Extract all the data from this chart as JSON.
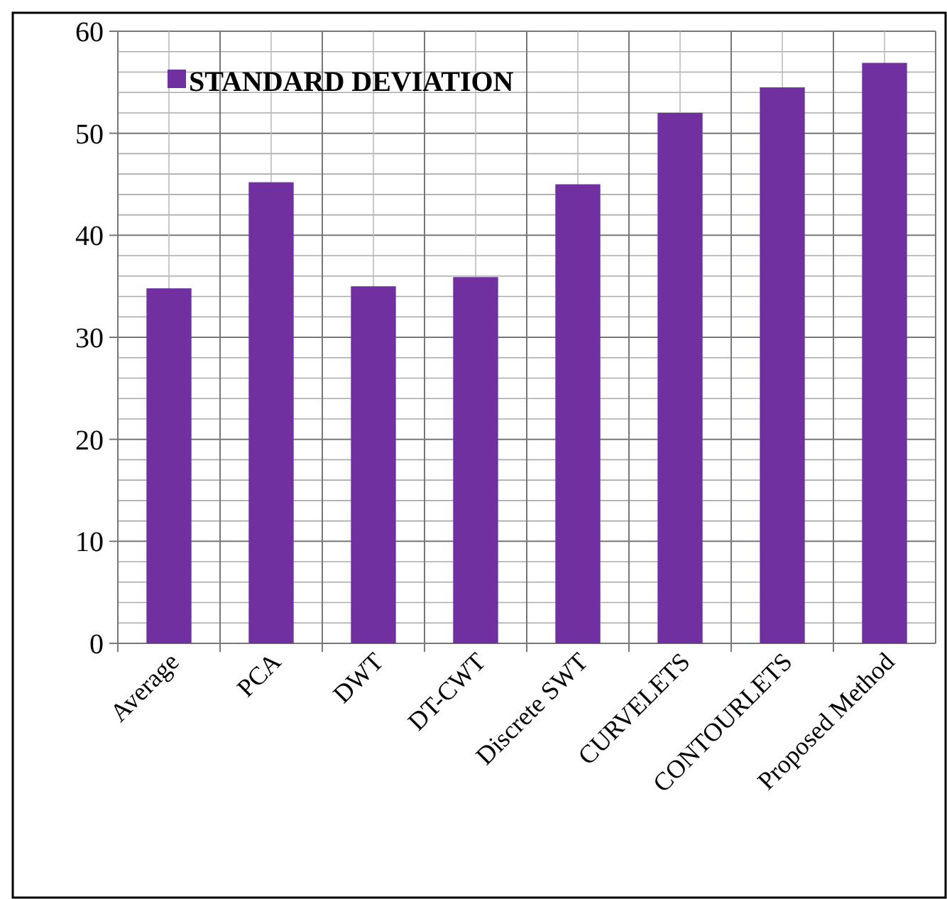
{
  "chart_data": {
    "type": "bar",
    "categories": [
      "Average",
      "PCA",
      "DWT",
      "DT-CWT",
      "Discrete SWT",
      "CURVELETS",
      "CONTOURLETS",
      "Proposed Method"
    ],
    "series": [
      {
        "name": "STANDARD DEVIATION",
        "color": "#7030a0",
        "values": [
          34.8,
          45.2,
          35,
          35.9,
          45,
          52,
          54.5,
          56.9
        ]
      }
    ],
    "ylim": [
      0,
      60
    ],
    "yticks": [
      0,
      {
        "value": 2,
        "label": null
      },
      {
        "value": 4,
        "label": null
      },
      {
        "value": 6,
        "label": null
      },
      {
        "value": 8,
        "label": null
      },
      10,
      {
        "value": 12,
        "label": null
      },
      {
        "value": 14,
        "label": null
      },
      {
        "value": 16,
        "label": null
      },
      {
        "value": 18,
        "label": null
      },
      20,
      {
        "value": 22,
        "label": null
      },
      {
        "value": 24,
        "label": null
      },
      {
        "value": 26,
        "label": null
      },
      {
        "value": 28,
        "label": null
      },
      30,
      {
        "value": 32,
        "label": null
      },
      {
        "value": 34,
        "label": null
      },
      {
        "value": 36,
        "label": null
      },
      {
        "value": 38,
        "label": null
      },
      40,
      {
        "value": 42,
        "label": null
      },
      {
        "value": 44,
        "label": null
      },
      {
        "value": 46,
        "label": null
      },
      {
        "value": 48,
        "label": null
      },
      50,
      {
        "value": 52,
        "label": null
      },
      {
        "value": 54,
        "label": null
      },
      {
        "value": 56,
        "label": null
      },
      {
        "value": 58,
        "label": null
      },
      60
    ],
    "grid": true,
    "legend": "top left"
  }
}
